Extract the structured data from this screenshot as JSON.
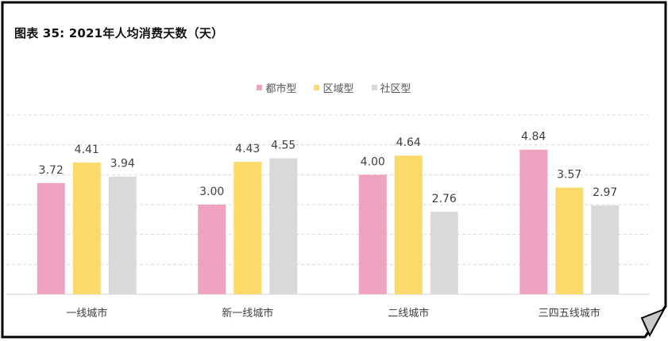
{
  "title": "图表 35: 2021年人均消费天数（天）",
  "chart_data": {
    "type": "bar",
    "categories": [
      "一线城市",
      "新一线城市",
      "二线城市",
      "三四五线城市"
    ],
    "series": [
      {
        "name": "都市型",
        "color": "#f0a3c0",
        "values": [
          3.72,
          3.0,
          4.0,
          4.84
        ]
      },
      {
        "name": "区域型",
        "color": "#fdd96a",
        "values": [
          4.41,
          4.43,
          4.64,
          3.57
        ]
      },
      {
        "name": "社区型",
        "color": "#d9d9d9",
        "values": [
          3.94,
          4.55,
          2.76,
          2.97
        ]
      }
    ],
    "ylim": [
      0,
      6
    ],
    "grid": true,
    "legend": "top-center",
    "xlabel": "",
    "ylabel": ""
  }
}
